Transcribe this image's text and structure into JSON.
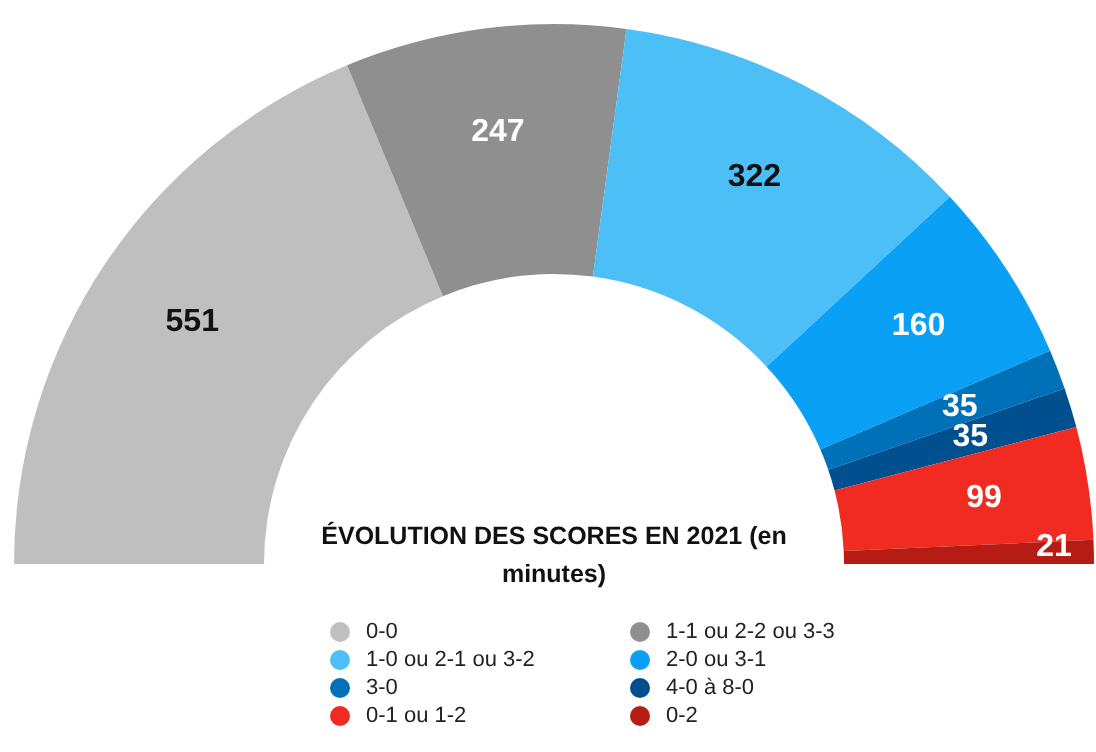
{
  "chart_data": {
    "type": "donut",
    "title": "ÉVOLUTION DES SCORES EN 2021 (en minutes)",
    "categories": [
      "0-0",
      "1-1 ou 2-2 ou 3-3",
      "1-0 ou 2-1 ou 3-2",
      "2-0 ou 3-1",
      "3-0",
      "4-0 à 8-0",
      "0-1 ou 1-2",
      "0-2"
    ],
    "values": [
      551,
      247,
      322,
      160,
      35,
      35,
      99,
      21
    ],
    "colors": [
      "#bfbfbf",
      "#8f8f8f",
      "#4cbff7",
      "#0aa0f5",
      "#0071b8",
      "#005090",
      "#f22b22",
      "#b71c14"
    ],
    "data_labels": true,
    "legend": "bottom"
  }
}
